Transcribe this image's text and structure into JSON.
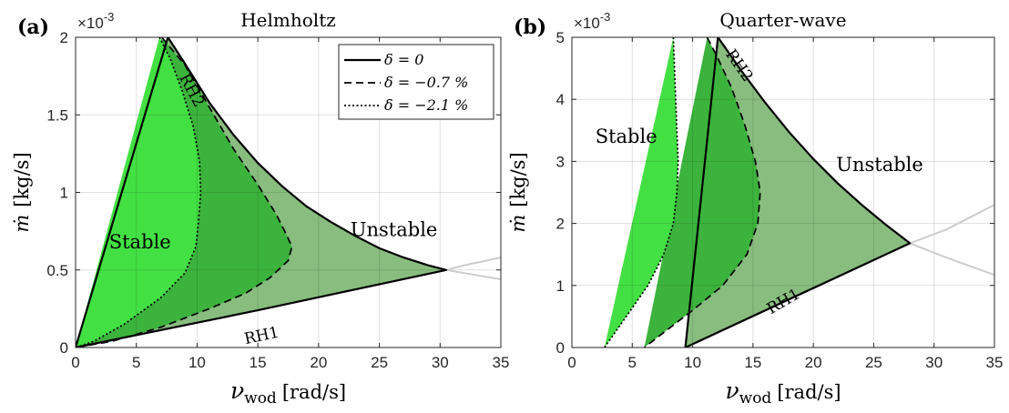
{
  "chart_data": [
    {
      "type": "area",
      "panel_label": "(a)",
      "title": "Helmholtz",
      "xlabel_main": "ν",
      "xlabel_sub": "wod",
      "xlabel_unit": "[rad/s]",
      "ylabel_main": "ṁ",
      "ylabel_unit": "[kg/s]",
      "y_multiplier": "×10",
      "y_multiplier_exp": "-3",
      "xlim": [
        0,
        35
      ],
      "ylim": [
        0,
        2
      ],
      "xticks": [
        0,
        5,
        10,
        15,
        20,
        25,
        30,
        35
      ],
      "xtick_labels": [
        "0",
        "5",
        "10",
        "15",
        "20",
        "25",
        "30",
        "35"
      ],
      "yticks": [
        0,
        0.5,
        1,
        1.5,
        2
      ],
      "ytick_labels": [
        "0",
        "0.5",
        "1",
        "1.5",
        "2"
      ],
      "grid": true,
      "legend_position": "top-right",
      "legend": [
        {
          "label": "δ = 0",
          "style": "solid"
        },
        {
          "label": "δ = −0.7 %",
          "style": "dashed"
        },
        {
          "label": "δ = −2.1 %",
          "style": "dotted"
        }
      ],
      "region_labels": {
        "stable": "Stable",
        "unstable": "Unstable"
      },
      "region_label_positions": {
        "stable": [
          5.3,
          0.68
        ],
        "unstable": [
          26.2,
          0.76
        ]
      },
      "curve_labels": [
        {
          "text": "RH2",
          "x": 9.6,
          "y": 1.66,
          "angle": 62
        },
        {
          "text": "RH1",
          "x": 15.3,
          "y": 0.08,
          "angle": -12
        }
      ],
      "colors": {
        "outer": "#88bd7f",
        "mid": "#3cb33c",
        "inner": "#43e043",
        "continuation": "#cccccc"
      },
      "series": [
        {
          "name": "δ = 0",
          "style": "solid",
          "points": [
            [
              7.6,
              2.0
            ],
            [
              9,
              1.83
            ],
            [
              11,
              1.58
            ],
            [
              13,
              1.37
            ],
            [
              15,
              1.19
            ],
            [
              17,
              1.04
            ],
            [
              19,
              0.91
            ],
            [
              21,
              0.81
            ],
            [
              23,
              0.72
            ],
            [
              25,
              0.64
            ],
            [
              27,
              0.58
            ],
            [
              29,
              0.53
            ],
            [
              30.5,
              0.5
            ],
            [
              15,
              0.24
            ],
            [
              0,
              0
            ]
          ]
        },
        {
          "name": "δ = −0.7 %",
          "style": "dashed",
          "points": [
            [
              7.1,
              2.0
            ],
            [
              9,
              1.82
            ],
            [
              11,
              1.55
            ],
            [
              13,
              1.28
            ],
            [
              15,
              1.05
            ],
            [
              16.5,
              0.86
            ],
            [
              17.4,
              0.72
            ],
            [
              17.8,
              0.65
            ],
            [
              17.5,
              0.56
            ],
            [
              16,
              0.45
            ],
            [
              14,
              0.35
            ],
            [
              11,
              0.25
            ],
            [
              7,
              0.13
            ],
            [
              3,
              0.04
            ],
            [
              0,
              0
            ]
          ]
        },
        {
          "name": "δ = −2.1 %",
          "style": "dotted",
          "points": [
            [
              6.9,
              2.0
            ],
            [
              7.8,
              1.86
            ],
            [
              8.8,
              1.65
            ],
            [
              9.7,
              1.42
            ],
            [
              10.2,
              1.2
            ],
            [
              10.3,
              1.0
            ],
            [
              10.1,
              0.8
            ],
            [
              9.9,
              0.65
            ],
            [
              9.0,
              0.48
            ],
            [
              7,
              0.32
            ],
            [
              4,
              0.15
            ],
            [
              1.5,
              0.04
            ],
            [
              0,
              0
            ]
          ]
        }
      ],
      "continuation_lines": [
        [
          [
            30.5,
            0.5
          ],
          [
            32,
            0.53
          ],
          [
            35,
            0.58
          ]
        ],
        [
          [
            30.5,
            0.5
          ],
          [
            32,
            0.48
          ],
          [
            35,
            0.44
          ]
        ]
      ]
    },
    {
      "type": "area",
      "panel_label": "(b)",
      "title": "Quarter-wave",
      "xlabel_main": "ν",
      "xlabel_sub": "wod",
      "xlabel_unit": "[rad/s]",
      "ylabel_main": "ṁ",
      "ylabel_unit": "[kg/s]",
      "y_multiplier": "×10",
      "y_multiplier_exp": "-3",
      "xlim": [
        0,
        35
      ],
      "ylim": [
        0,
        5
      ],
      "xticks": [
        0,
        5,
        10,
        15,
        20,
        25,
        30,
        35
      ],
      "xtick_labels": [
        "0",
        "5",
        "10",
        "15",
        "20",
        "25",
        "30",
        "35"
      ],
      "yticks": [
        0,
        1,
        2,
        3,
        4,
        5
      ],
      "ytick_labels": [
        "0",
        "1",
        "2",
        "3",
        "4",
        "5"
      ],
      "grid": true,
      "region_labels": {
        "stable": "Stable",
        "unstable": "Unstable"
      },
      "region_label_positions": {
        "stable": [
          4.5,
          3.4
        ],
        "unstable": [
          25.5,
          2.95
        ]
      },
      "curve_labels": [
        {
          "text": "RH2",
          "x": 13.9,
          "y": 4.55,
          "angle": 55
        },
        {
          "text": "RH1",
          "x": 17.5,
          "y": 0.75,
          "angle": -30
        }
      ],
      "colors": {
        "outer": "#88bd7f",
        "mid": "#3cb33c",
        "inner": "#43e043",
        "continuation": "#cccccc"
      },
      "series": [
        {
          "name": "δ = 0",
          "style": "solid",
          "points": [
            [
              12.1,
              5.0
            ],
            [
              14,
              4.47
            ],
            [
              16,
              3.95
            ],
            [
              18,
              3.47
            ],
            [
              20,
              3.04
            ],
            [
              22,
              2.65
            ],
            [
              24,
              2.3
            ],
            [
              26,
              1.98
            ],
            [
              28,
              1.68
            ],
            [
              9.4,
              0
            ]
          ]
        },
        {
          "name": "δ = −0.7 %",
          "style": "dashed",
          "points": [
            [
              11.2,
              5.0
            ],
            [
              12,
              4.7
            ],
            [
              13.2,
              4.2
            ],
            [
              14.3,
              3.6
            ],
            [
              15.2,
              3.0
            ],
            [
              15.6,
              2.5
            ],
            [
              15.4,
              2.0
            ],
            [
              14.5,
              1.5
            ],
            [
              12.5,
              1.0
            ],
            [
              10,
              0.6
            ],
            [
              8,
              0.3
            ],
            [
              6,
              0
            ]
          ]
        },
        {
          "name": "δ = −2.1 %",
          "style": "dotted",
          "points": [
            [
              8.4,
              5.0
            ],
            [
              8.5,
              4.5
            ],
            [
              8.6,
              4.0
            ],
            [
              8.7,
              3.5
            ],
            [
              8.8,
              3.0
            ],
            [
              8.7,
              2.5
            ],
            [
              8.4,
              2.0
            ],
            [
              7.6,
              1.5
            ],
            [
              6.3,
              1.0
            ],
            [
              4.5,
              0.5
            ],
            [
              2.7,
              0
            ]
          ]
        }
      ],
      "continuation_lines": [
        [
          [
            28,
            1.68
          ],
          [
            31,
            1.9
          ],
          [
            35,
            2.3
          ]
        ],
        [
          [
            28,
            1.68
          ],
          [
            31,
            1.45
          ],
          [
            35,
            1.17
          ]
        ]
      ]
    }
  ]
}
